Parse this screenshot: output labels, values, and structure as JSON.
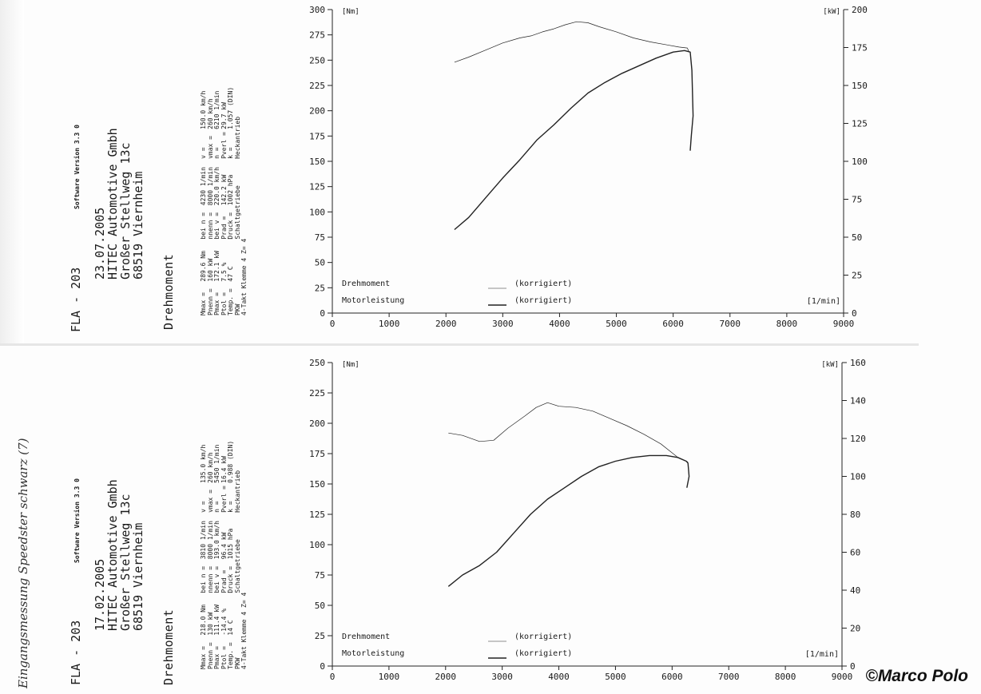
{
  "handwriting": {
    "text": "Eingangsmessung Speedster schwarz (7)"
  },
  "copyright": "©Marco Polo",
  "sheets": [
    {
      "id": "top",
      "header": {
        "title": "FLA - 203",
        "software": "Software Version 3.3 0",
        "date": "23.07.2005",
        "company": "HITEC Automotive Gmbh",
        "street": "Großer Stellweg 13c",
        "city": "68519 Viernheim",
        "section": "Drehmoment"
      },
      "table": [
        [
          "Mmax =",
          "289.6 Nm",
          "bei n =",
          "4230 1/min",
          "v =",
          "150.0 km/h"
        ],
        [
          "Pnenn =",
          "160 kW",
          "nnenn =",
          "8000 1/min",
          "vmax =",
          "260 km/h"
        ],
        [
          "Pmax =",
          "172.1 kW",
          "bei v =",
          "220.0 km/h",
          "n =",
          "6210 1/min"
        ],
        [
          "Ptol =",
          "7.5 %",
          "Prad =",
          "142.2 kW",
          "Pverl =",
          "29.7 kW"
        ],
        [
          "Temp. =",
          "47 C",
          "Druck =",
          "1002 hPa",
          "k =",
          "1.057 (DIN)"
        ],
        [
          "PKW",
          "",
          "Schaltgetriebe",
          "",
          "Heckantrieb",
          ""
        ],
        [
          "4-Takt Klemme 4 Z= 4",
          "",
          "",
          "",
          "",
          ""
        ]
      ]
    },
    {
      "id": "bottom",
      "header": {
        "title": "FLA - 203",
        "software": "Software Version 3.3 0",
        "date": "17.02.2005",
        "company": "HITEC Automotive Gmbh",
        "street": "Großer Stellweg 13c",
        "city": "68519 Viernheim",
        "section": "Drehmoment"
      },
      "table": [
        [
          "Mmax =",
          "218.0 Nm",
          "bei n =",
          "3810 1/min",
          "v =",
          "135.0 km/h"
        ],
        [
          "Pnenn =",
          "130 kW",
          "nnenn =",
          "8000 1/min",
          "vmax =",
          "260 km/h"
        ],
        [
          "Pmax =",
          "111.4 kW",
          "bei v =",
          "193.0 km/h",
          "n =",
          "5450 1/min"
        ],
        [
          "Ptol =",
          "-14.4 %",
          "Prad =",
          "96.4 kW",
          "Pverl =",
          "16.4 kW"
        ],
        [
          "Temp. =",
          "14 C",
          "Druck =",
          "1015 hPa",
          "k =",
          "0.988 (DIN)"
        ],
        [
          "PKW",
          "",
          "Schaltgetriebe",
          "",
          "Heckantrieb",
          ""
        ],
        [
          "4-Takt Klemme 4 Z= 4",
          "",
          "",
          "",
          "",
          ""
        ]
      ]
    }
  ],
  "chart_data": [
    {
      "type": "line",
      "xlabel": "[1/min]",
      "ylabel_left": "[Nm]",
      "ylabel_right": "[kW]",
      "xlim": [
        0,
        9000
      ],
      "xticks": [
        "0",
        "1000",
        "2000",
        "3000",
        "4000",
        "5000",
        "6000",
        "7000",
        "8000",
        "9000"
      ],
      "ylim_left": [
        0,
        300
      ],
      "yticks_left": [
        "0",
        "25",
        "50",
        "75",
        "100",
        "125",
        "150",
        "175",
        "200",
        "225",
        "250",
        "275",
        "300"
      ],
      "ylim_right": [
        0,
        200
      ],
      "yticks_right": [
        "0",
        "25",
        "50",
        "75",
        "100",
        "125",
        "150",
        "175",
        "200"
      ],
      "legend": [
        {
          "name": "Drehmoment",
          "note": "(korrigiert)"
        },
        {
          "name": "Motorleistung",
          "note": "(korrigiert)"
        }
      ],
      "series": [
        {
          "name": "Drehmoment",
          "axis": "left",
          "style": "thin",
          "x": [
            2150,
            2400,
            2700,
            3000,
            3300,
            3500,
            3700,
            3900,
            4100,
            4300,
            4500,
            4700,
            5000,
            5300,
            5600,
            5900,
            6100,
            6250,
            6280
          ],
          "y": [
            248,
            253,
            260,
            267,
            272,
            274,
            278,
            281,
            285,
            288,
            287,
            283,
            278,
            272,
            268,
            265,
            263,
            262,
            258
          ]
        },
        {
          "name": "Motorleistung",
          "axis": "right",
          "style": "thick",
          "x": [
            2150,
            2400,
            2700,
            3000,
            3300,
            3600,
            3900,
            4200,
            4500,
            4800,
            5100,
            5400,
            5700,
            6000,
            6200,
            6300,
            6330,
            6350,
            6320,
            6300
          ],
          "y": [
            55,
            63,
            76,
            89,
            101,
            114,
            124,
            135,
            145,
            152,
            158,
            163,
            168,
            172,
            173,
            172,
            160,
            130,
            117,
            107
          ]
        }
      ]
    },
    {
      "type": "line",
      "xlabel": "[1/min]",
      "ylabel_left": "[Nm]",
      "ylabel_right": "[kW]",
      "xlim": [
        0,
        9000
      ],
      "xticks": [
        "0",
        "1000",
        "2000",
        "3000",
        "4000",
        "5000",
        "6000",
        "7000",
        "8000",
        "9000"
      ],
      "ylim_left": [
        0,
        250
      ],
      "yticks_left": [
        "0",
        "25",
        "50",
        "75",
        "100",
        "125",
        "150",
        "175",
        "200",
        "225",
        "250"
      ],
      "ylim_right": [
        0,
        160
      ],
      "yticks_right": [
        "0",
        "20",
        "40",
        "60",
        "80",
        "100",
        "120",
        "140",
        "160"
      ],
      "legend": [
        {
          "name": "Drehmoment",
          "note": "(korrigiert)"
        },
        {
          "name": "Motorleistung",
          "note": "(korrigiert)"
        }
      ],
      "series": [
        {
          "name": "Drehmoment",
          "axis": "left",
          "style": "thin",
          "x": [
            2050,
            2300,
            2600,
            2850,
            3100,
            3400,
            3600,
            3800,
            4000,
            4300,
            4600,
            4900,
            5200,
            5500,
            5800,
            6100,
            6280
          ],
          "y": [
            192,
            190,
            185,
            186,
            196,
            206,
            213,
            217,
            214,
            213,
            210,
            204,
            198,
            191,
            183,
            172,
            168
          ]
        },
        {
          "name": "Motorleistung",
          "axis": "right",
          "style": "thick",
          "x": [
            2050,
            2300,
            2600,
            2900,
            3200,
            3500,
            3800,
            4100,
            4400,
            4700,
            5000,
            5300,
            5600,
            5900,
            6100,
            6250,
            6280,
            6300,
            6260
          ],
          "y": [
            42,
            48,
            53,
            60,
            70,
            80,
            88,
            94,
            100,
            105,
            108,
            110,
            111,
            111,
            110,
            108,
            107,
            100,
            94
          ]
        }
      ]
    }
  ]
}
